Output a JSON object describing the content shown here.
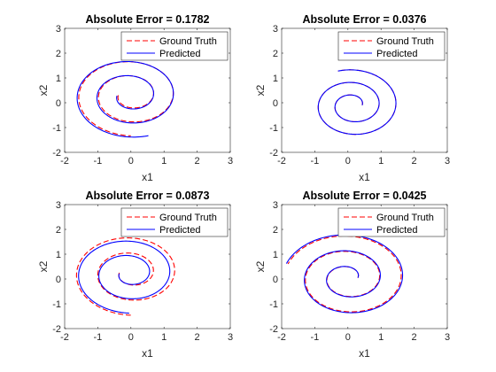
{
  "chart_data": [
    {
      "type": "line",
      "title": "Absolute Error = 0.1782",
      "xlabel": "x1",
      "ylabel": "x2",
      "xlim": [
        -2,
        3
      ],
      "ylim": [
        -2,
        3
      ],
      "xticks": [
        "-2",
        "-1",
        "0",
        "1",
        "2",
        "3"
      ],
      "yticks": [
        "-2",
        "-1",
        "0",
        "1",
        "2",
        "3"
      ],
      "legend_position": "top-right",
      "series": [
        {
          "name": "Ground Truth",
          "color": "#ff0000",
          "style": "dashed",
          "spiral": {
            "cx": 0.0,
            "cy": 0.3,
            "r0": 0.38,
            "r_end": 1.72,
            "theta0": 3.14,
            "turns": 2.25,
            "sx": 1.0,
            "sy": 0.95
          }
        },
        {
          "name": "Predicted",
          "color": "#0000ff",
          "style": "solid",
          "spiral": {
            "cx": -0.02,
            "cy": 0.28,
            "r0": 0.4,
            "r_end": 1.78,
            "theta0": 3.14,
            "turns": 2.3,
            "sx": 1.0,
            "sy": 0.95
          }
        }
      ]
    },
    {
      "type": "line",
      "title": "Absolute Error = 0.0376",
      "xlabel": "x1",
      "ylabel": "x2",
      "xlim": [
        -2,
        3
      ],
      "ylim": [
        -2,
        3
      ],
      "xticks": [
        "-2",
        "-1",
        "0",
        "1",
        "2",
        "3"
      ],
      "yticks": [
        "-2",
        "-1",
        "0",
        "1",
        "2",
        "3"
      ],
      "legend_position": "top-right",
      "series": [
        {
          "name": "Ground Truth",
          "color": "#ff0000",
          "style": "dashed",
          "spiral": {
            "cx": 0.15,
            "cy": -0.1,
            "r0": 0.28,
            "r_end": 1.45,
            "theta0": 0.0,
            "turns": 2.3,
            "sx": 1.0,
            "sy": 1.0
          }
        },
        {
          "name": "Predicted",
          "color": "#0000ff",
          "style": "solid",
          "spiral": {
            "cx": 0.15,
            "cy": -0.1,
            "r0": 0.28,
            "r_end": 1.45,
            "theta0": 0.0,
            "turns": 2.3,
            "sx": 1.0,
            "sy": 1.0
          }
        }
      ]
    },
    {
      "type": "line",
      "title": "Absolute Error = 0.0873",
      "xlabel": "x1",
      "ylabel": "x2",
      "xlim": [
        -2,
        3
      ],
      "ylim": [
        -2,
        3
      ],
      "xticks": [
        "-2",
        "-1",
        "0",
        "1",
        "2",
        "3"
      ],
      "yticks": [
        "-2",
        "-1",
        "0",
        "1",
        "2",
        "3"
      ],
      "legend_position": "top-right",
      "series": [
        {
          "name": "Ground Truth",
          "color": "#ff0000",
          "style": "dashed",
          "spiral": {
            "cx": 0.0,
            "cy": 0.25,
            "r0": 0.35,
            "r_end": 1.8,
            "theta0": 3.14,
            "turns": 2.25,
            "sx": 1.0,
            "sy": 0.95
          }
        },
        {
          "name": "Predicted",
          "color": "#0000ff",
          "style": "solid",
          "spiral": {
            "cx": -0.05,
            "cy": 0.22,
            "r0": 0.3,
            "r_end": 1.68,
            "theta0": 3.14,
            "turns": 2.25,
            "sx": 1.0,
            "sy": 0.95
          }
        }
      ]
    },
    {
      "type": "line",
      "title": "Absolute Error = 0.0425",
      "xlabel": "x1",
      "ylabel": "x2",
      "xlim": [
        -2,
        3
      ],
      "ylim": [
        -2,
        3
      ],
      "xticks": [
        "-2",
        "-1",
        "0",
        "1",
        "2",
        "3"
      ],
      "yticks": [
        "-2",
        "-1",
        "0",
        "1",
        "2",
        "3"
      ],
      "legend_position": "top-right",
      "series": [
        {
          "name": "Ground Truth",
          "color": "#ff0000",
          "style": "dashed",
          "spiral": {
            "cx": 0.0,
            "cy": 0.05,
            "r0": 0.3,
            "r_end": 1.9,
            "theta0": 0.0,
            "turns": 2.45,
            "sx": 1.0,
            "sy": 0.95
          }
        },
        {
          "name": "Predicted",
          "color": "#0000ff",
          "style": "solid",
          "spiral": {
            "cx": 0.0,
            "cy": 0.05,
            "r0": 0.3,
            "r_end": 1.95,
            "theta0": 0.0,
            "turns": 2.45,
            "sx": 1.0,
            "sy": 0.95
          }
        }
      ]
    }
  ]
}
